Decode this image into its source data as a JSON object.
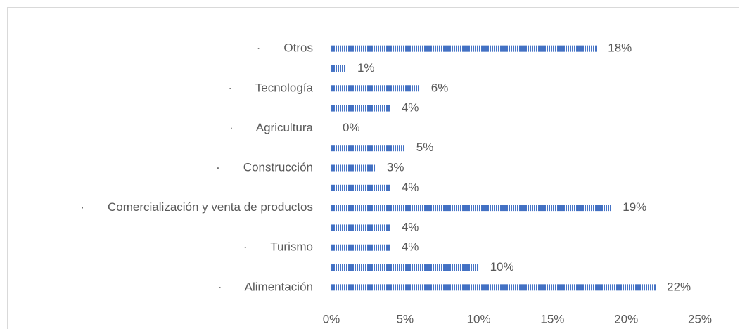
{
  "chart_data": {
    "type": "bar",
    "orientation": "horizontal",
    "categories": [
      "·       Alimentación",
      null,
      "·       Turismo",
      null,
      "·       Comercialización y venta de productos",
      null,
      "·       Construcción",
      null,
      "·       Agricultura",
      null,
      "·       Tecnología",
      null,
      "·       Otros"
    ],
    "values": [
      22,
      10,
      4,
      4,
      19,
      4,
      3,
      5,
      0,
      4,
      6,
      1,
      18
    ],
    "value_labels": [
      "22%",
      "10%",
      "4%",
      "4%",
      "19%",
      "4%",
      "3%",
      "5%",
      "0%",
      "4%",
      "6%",
      "1%",
      "18%"
    ],
    "color": "#4472c4",
    "xlim": [
      0,
      25
    ],
    "xticks": [
      {
        "value": 0,
        "label": "0%"
      },
      {
        "value": 5,
        "label": "5%"
      },
      {
        "value": 10,
        "label": "10%"
      },
      {
        "value": 15,
        "label": "15%"
      },
      {
        "value": 20,
        "label": "20%"
      },
      {
        "value": 25,
        "label": "25%"
      }
    ],
    "grid": false
  }
}
